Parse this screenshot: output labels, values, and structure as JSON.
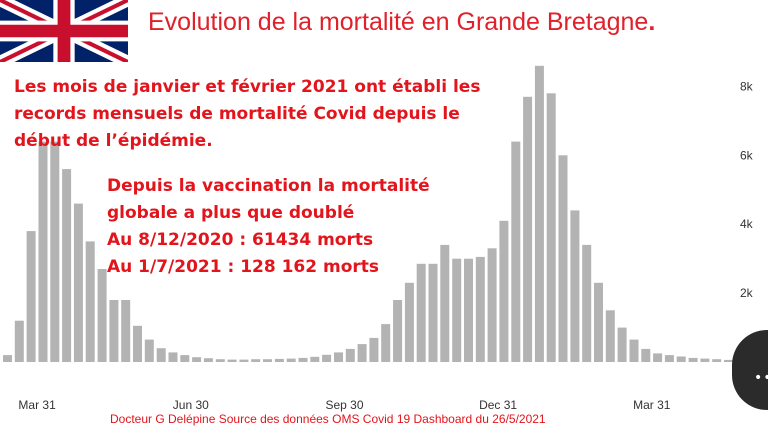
{
  "header": {
    "title": "Evolution de la mortalité en Grande Bretagne",
    "title_end": "."
  },
  "annotation_1": {
    "lines": [
      "Les mois de janvier et février 2021 ont établi les",
      "records mensuels de mortalité Covid depuis le",
      "début de l’épidémie."
    ]
  },
  "annotation_2": {
    "lines": [
      "Depuis la vaccination la mortalité",
      "globale a plus que doublé",
      "Au 8/12/2020 : 61434 morts",
      "Au 1/7/2021 : 128 162 morts"
    ]
  },
  "footer": {
    "source": "Docteur G Delépine Source des données OMS Covid 19 Dashboard du 26/5/2021"
  },
  "colors": {
    "accent": "#e2141c",
    "bar": "#b3b3b3",
    "flag_blue": "#012169",
    "flag_red": "#c8102e"
  },
  "icons": {
    "flag": "union-jack-flag-icon",
    "chat": "chat-bubble-icon"
  },
  "chart_data": {
    "type": "bar",
    "title": "",
    "xlabel": "",
    "ylabel": "",
    "ylim": [
      0,
      9000
    ],
    "y_axis_position": "right",
    "y_ticks": [
      {
        "value": 2000,
        "label": "2k"
      },
      {
        "value": 4000,
        "label": "4k"
      },
      {
        "value": 6000,
        "label": "6k"
      },
      {
        "value": 8000,
        "label": "8k"
      }
    ],
    "x_ticks": [
      {
        "index": 2,
        "label": "Mar 31"
      },
      {
        "index": 15,
        "label": "Jun 30"
      },
      {
        "index": 28,
        "label": "Sep 30"
      },
      {
        "index": 41,
        "label": "Dec 31"
      },
      {
        "index": 54,
        "label": "Mar 31"
      }
    ],
    "grid": false,
    "series": [
      {
        "values": [
          200,
          1200,
          3800,
          6400,
          6400,
          5600,
          4600,
          3500,
          2700,
          1800,
          1800,
          1050,
          650,
          400,
          280,
          200,
          140,
          110,
          80,
          70,
          70,
          80,
          80,
          90,
          100,
          120,
          150,
          210,
          280,
          380,
          520,
          700,
          1100,
          1800,
          2300,
          2850,
          2850,
          3400,
          3000,
          3000,
          3050,
          3300,
          4100,
          6400,
          7700,
          8600,
          7800,
          6000,
          4400,
          3400,
          2300,
          1500,
          1000,
          650,
          380,
          250,
          200,
          160,
          120,
          100,
          80,
          60
        ]
      }
    ]
  }
}
